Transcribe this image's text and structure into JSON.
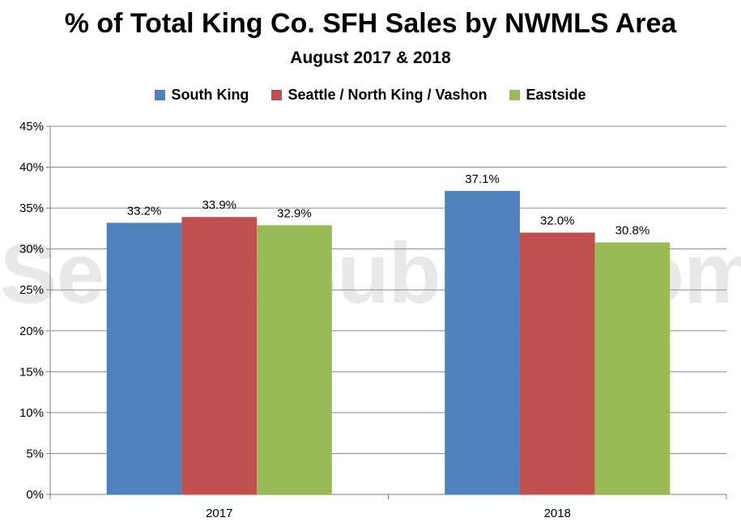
{
  "chart_data": {
    "type": "bar",
    "title": "% of Total King Co. SFH Sales by NWMLS Area",
    "subtitle": "August 2017 & 2018",
    "categories": [
      "2017",
      "2018"
    ],
    "series": [
      {
        "name": "South King",
        "color": "#4f81bd",
        "values": [
          33.2,
          37.1
        ],
        "labels": [
          "33.2%",
          "37.1%"
        ]
      },
      {
        "name": "Seattle / North King / Vashon",
        "color": "#c0504d",
        "values": [
          33.9,
          32.0
        ],
        "labels": [
          "33.9%",
          "32.0%"
        ]
      },
      {
        "name": "Eastside",
        "color": "#9bbb59",
        "values": [
          32.9,
          30.8
        ],
        "labels": [
          "32.9%",
          "30.8%"
        ]
      }
    ],
    "yticks": [
      "0%",
      "5%",
      "10%",
      "15%",
      "20%",
      "25%",
      "30%",
      "35%",
      "40%",
      "45%"
    ],
    "ylim": [
      0,
      45
    ],
    "grid": true,
    "legend_position": "top",
    "watermark": "SeattleBubble.com"
  }
}
